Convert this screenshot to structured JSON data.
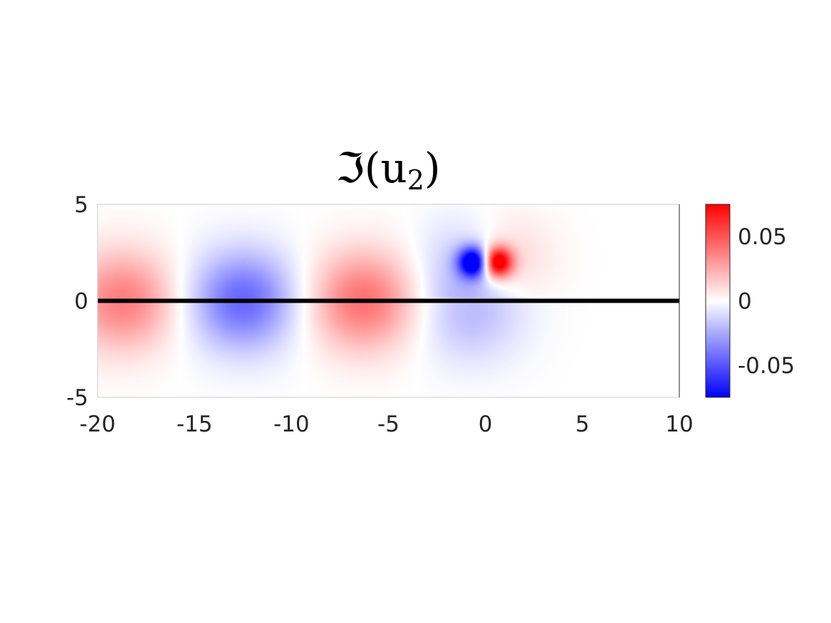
{
  "chart_data": {
    "type": "heatmap",
    "title": {
      "main": "ℑ(u",
      "subscript": "2",
      "close": ")"
    },
    "xlim": [
      -20,
      10
    ],
    "ylim": [
      -5,
      5
    ],
    "x_ticks": [
      {
        "value": -20,
        "label": "-20"
      },
      {
        "value": -15,
        "label": "-15"
      },
      {
        "value": -10,
        "label": "-10"
      },
      {
        "value": -5,
        "label": "-5"
      },
      {
        "value": 0,
        "label": "0"
      },
      {
        "value": 5,
        "label": "5"
      },
      {
        "value": 10,
        "label": "10"
      }
    ],
    "y_ticks": [
      {
        "value": 5,
        "label": "5"
      },
      {
        "value": 0,
        "label": "0"
      },
      {
        "value": -5,
        "label": "-5"
      }
    ],
    "colorbar": {
      "range": [
        -0.075,
        0.075
      ],
      "colors": [
        "#0000ff",
        "#ffffff",
        "#ff0000"
      ],
      "ticks": [
        {
          "value": 0.05,
          "label": "0.05"
        },
        {
          "value": 0,
          "label": "0"
        },
        {
          "value": -0.05,
          "label": "-0.05"
        }
      ]
    },
    "line": {
      "y": 0,
      "x": [
        -20,
        10
      ],
      "color": "#000000"
    },
    "features": [
      {
        "kind": "lobe",
        "x": -18.7,
        "y": 0,
        "value": 0.038
      },
      {
        "kind": "lobe",
        "x": -12.5,
        "y": 0,
        "value": -0.045
      },
      {
        "kind": "lobe",
        "x": -6.3,
        "y": 0,
        "value": 0.042
      },
      {
        "kind": "lobe",
        "x": -0.8,
        "y": -0.6,
        "value": -0.02
      },
      {
        "kind": "dipole",
        "x": -0.6,
        "y": 2,
        "value": -0.075
      },
      {
        "kind": "dipole",
        "x": 0.6,
        "y": 2,
        "value": 0.075
      }
    ],
    "grid": false,
    "legend": "colorbar-right"
  }
}
